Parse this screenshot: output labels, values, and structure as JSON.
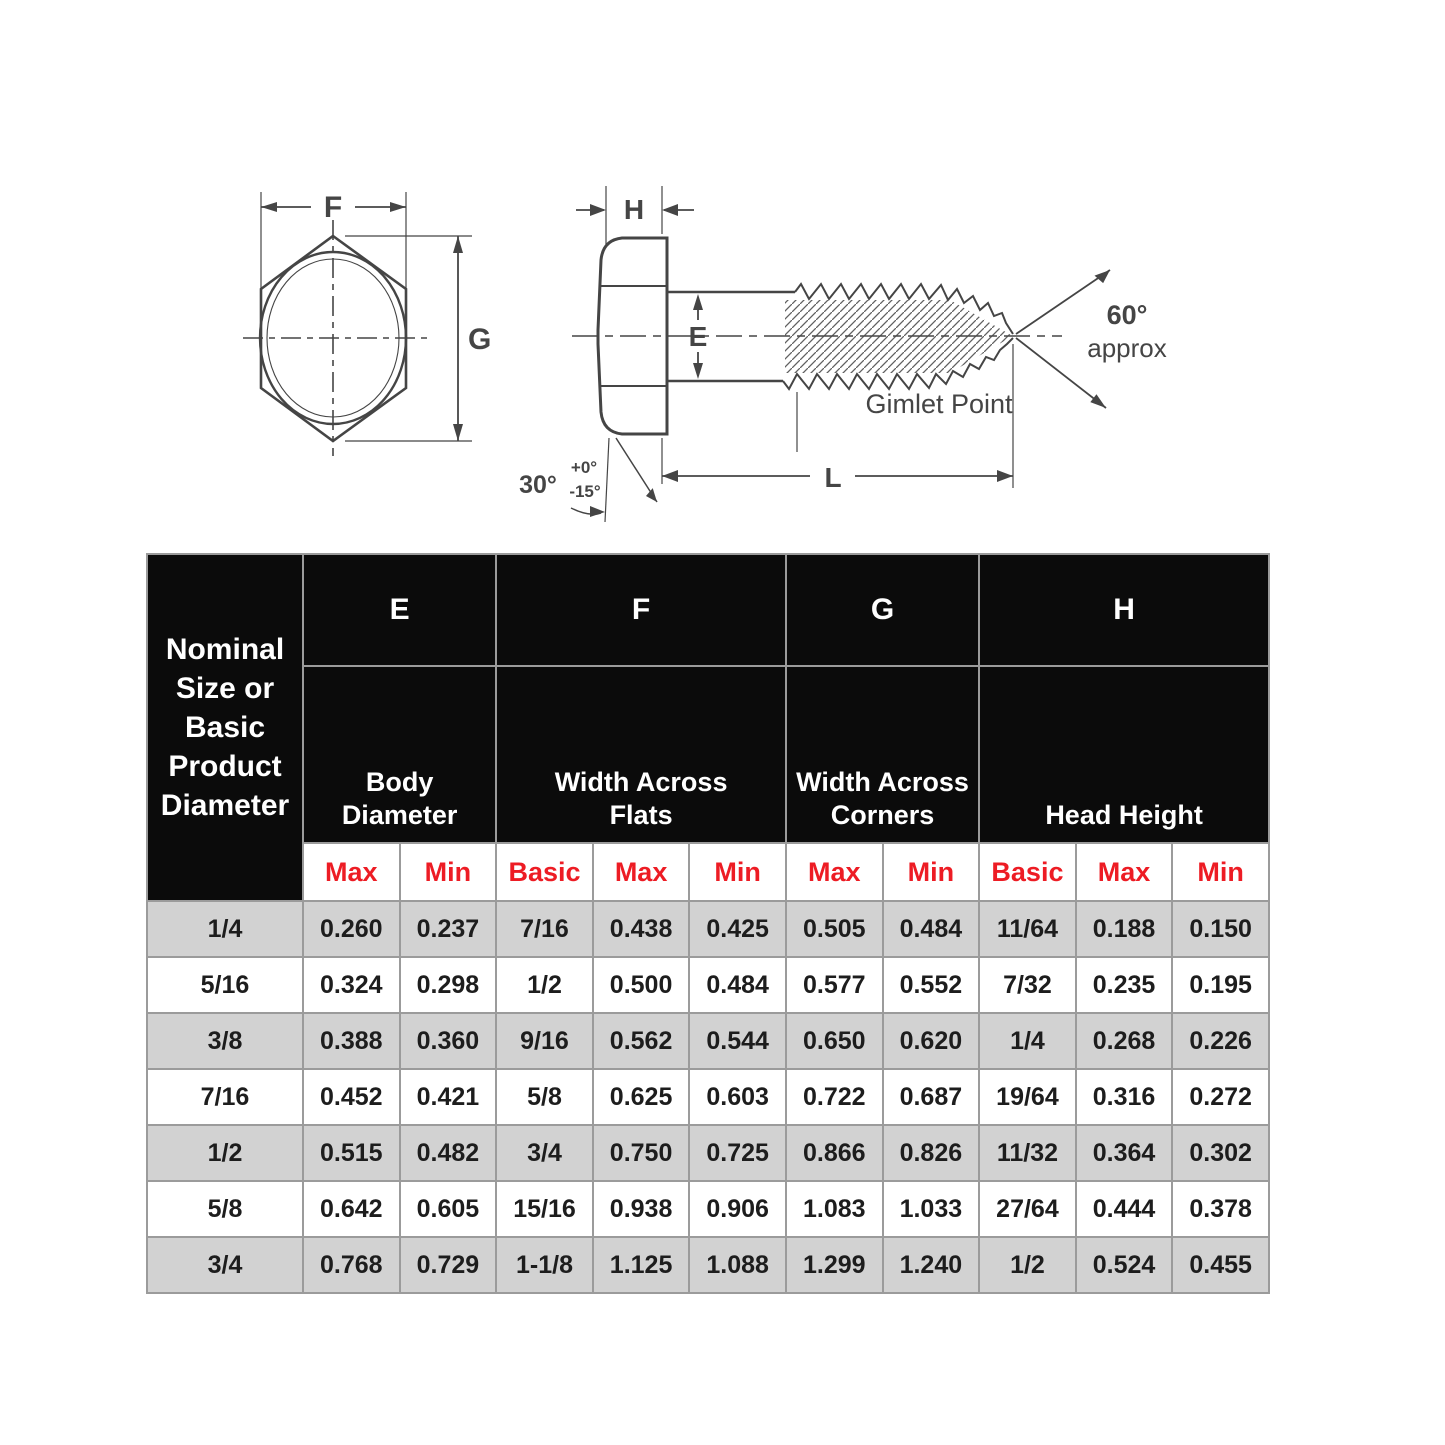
{
  "diagram": {
    "labels": {
      "f": "F",
      "g": "G",
      "h": "H",
      "e": "E",
      "l": "L",
      "angle30": "30°",
      "tol_plus": "+0°",
      "tol_minus": "-15°",
      "angle60": "60°",
      "approx": "approx",
      "gimlet_point": "Gimlet Point"
    }
  },
  "table": {
    "corner_header": "Nominal Size or Basic Product Diameter",
    "groups": [
      {
        "letter": "E",
        "name": "Body Diameter"
      },
      {
        "letter": "F",
        "name": "Width Across Flats"
      },
      {
        "letter": "G",
        "name": "Width Across Corners"
      },
      {
        "letter": "H",
        "name": "Head Height"
      }
    ],
    "subheaders": [
      "Max",
      "Min",
      "Basic",
      "Max",
      "Min",
      "Max",
      "Min",
      "Basic",
      "Max",
      "Min"
    ],
    "rows": [
      {
        "size": "1/4",
        "values": [
          "0.260",
          "0.237",
          "7/16",
          "0.438",
          "0.425",
          "0.505",
          "0.484",
          "11/64",
          "0.188",
          "0.150"
        ]
      },
      {
        "size": "5/16",
        "values": [
          "0.324",
          "0.298",
          "1/2",
          "0.500",
          "0.484",
          "0.577",
          "0.552",
          "7/32",
          "0.235",
          "0.195"
        ]
      },
      {
        "size": "3/8",
        "values": [
          "0.388",
          "0.360",
          "9/16",
          "0.562",
          "0.544",
          "0.650",
          "0.620",
          "1/4",
          "0.268",
          "0.226"
        ]
      },
      {
        "size": "7/16",
        "values": [
          "0.452",
          "0.421",
          "5/8",
          "0.625",
          "0.603",
          "0.722",
          "0.687",
          "19/64",
          "0.316",
          "0.272"
        ]
      },
      {
        "size": "1/2",
        "values": [
          "0.515",
          "0.482",
          "3/4",
          "0.750",
          "0.725",
          "0.866",
          "0.826",
          "11/32",
          "0.364",
          "0.302"
        ]
      },
      {
        "size": "5/8",
        "values": [
          "0.642",
          "0.605",
          "15/16",
          "0.938",
          "0.906",
          "1.083",
          "1.033",
          "27/64",
          "0.444",
          "0.378"
        ]
      },
      {
        "size": "3/4",
        "values": [
          "0.768",
          "0.729",
          "1-1/8",
          "1.125",
          "1.088",
          "1.299",
          "1.240",
          "1/2",
          "0.524",
          "0.455"
        ]
      }
    ]
  },
  "colors": {
    "accent_red": "#ed1c24",
    "header_bg": "#0b0b0b",
    "row_shade": "#d2d2d2",
    "row_plain": "#ffffff",
    "grid_line": "#9b9b9b",
    "data_ink": "#1d1d1d",
    "drawing_ink": "#454545",
    "page_bg": "#ffffff"
  }
}
